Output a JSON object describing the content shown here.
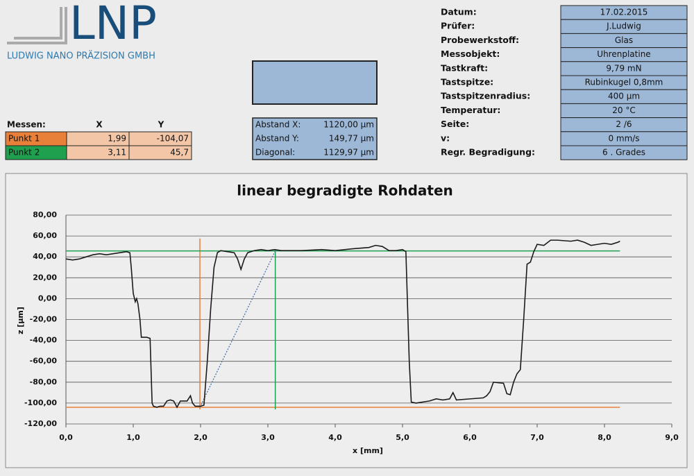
{
  "logo": {
    "name": "LNP",
    "subtitle": "LUDWIG NANO PRÄZISION GMBH"
  },
  "measure": {
    "headers": [
      "Messen:",
      "X",
      "Y"
    ],
    "rows": [
      {
        "label": "Punkt 1",
        "color": "#e8803a",
        "x": {
          "value": 1.99,
          "label": "1,99"
        },
        "y": {
          "value": -104.07,
          "label": "-104,07"
        }
      },
      {
        "label": "Punkt 2",
        "color": "#1fa04f",
        "x": {
          "value": 3.11,
          "label": "3,11"
        },
        "y": {
          "value": 45.7,
          "label": "45,7"
        }
      }
    ]
  },
  "distance": {
    "rows": [
      {
        "label": "Abstand X:",
        "value": "1120,00 µm"
      },
      {
        "label": "Abstand Y:",
        "value": "149,77 µm"
      },
      {
        "label": "Diagonal:",
        "value": "1129,97 µm"
      }
    ]
  },
  "info": {
    "rows": [
      {
        "label": "Datum:",
        "value": "17.02.2015"
      },
      {
        "label": "Prüfer:",
        "value": "J.Ludwig"
      },
      {
        "label": "Probewerkstoff:",
        "value": "Glas"
      },
      {
        "label": "Messobjekt:",
        "value": "Uhrenplatine"
      },
      {
        "label": "Tastkraft:",
        "value": "9,79 mN"
      },
      {
        "label": "Tastspitze:",
        "value": "Rubinkugel 0,8mm"
      },
      {
        "label": "Tastspitzenradius:",
        "value": "400 µm"
      },
      {
        "label": "Temperatur:",
        "value": "20 °C"
      },
      {
        "label": "Seite:",
        "value": "2 /6"
      },
      {
        "label": "v:",
        "value": "0 mm/s"
      },
      {
        "label": "Regr. Begradigung:",
        "value": "6 . Grades"
      }
    ]
  },
  "chart_data": {
    "type": "line",
    "title": "linear begradigte Rohdaten",
    "x_label": "x [mm]",
    "y_label": "z [µm]",
    "xlim": [
      0,
      9
    ],
    "xticks": [
      {
        "value": 0,
        "label": "0,0"
      },
      {
        "value": 1,
        "label": "1,0"
      },
      {
        "value": 2,
        "label": "2,0"
      },
      {
        "value": 3,
        "label": "3,0"
      },
      {
        "value": 4,
        "label": "4,0"
      },
      {
        "value": 5,
        "label": "5,0"
      },
      {
        "value": 6,
        "label": "6,0"
      },
      {
        "value": 7,
        "label": "7,0"
      },
      {
        "value": 8,
        "label": "8,0"
      },
      {
        "value": 9,
        "label": "9,0"
      }
    ],
    "ylim": [
      -120,
      80
    ],
    "yticks": [
      {
        "value": -120,
        "label": "-120,00"
      },
      {
        "value": -100,
        "label": "-100,00"
      },
      {
        "value": -80,
        "label": "-80,00"
      },
      {
        "value": -60,
        "label": "-60,00"
      },
      {
        "value": -40,
        "label": "-40,00"
      },
      {
        "value": -20,
        "label": "-20,00"
      },
      {
        "value": 0,
        "label": "0,00"
      },
      {
        "value": 20,
        "label": "20,00"
      },
      {
        "value": 40,
        "label": "40,00"
      },
      {
        "value": 60,
        "label": "60,00"
      },
      {
        "value": 80,
        "label": "80,00"
      }
    ],
    "grid": true,
    "diagonal_color": "#4a6fa5",
    "x": [
      0,
      0.1,
      0.2,
      0.3,
      0.4,
      0.5,
      0.6,
      0.7,
      0.8,
      0.9,
      0.95,
      0.97,
      1.0,
      1.03,
      1.05,
      1.07,
      1.1,
      1.12,
      1.2,
      1.25,
      1.28,
      1.3,
      1.35,
      1.4,
      1.45,
      1.5,
      1.55,
      1.6,
      1.65,
      1.7,
      1.75,
      1.8,
      1.85,
      1.88,
      1.92,
      2.0,
      2.05,
      2.1,
      2.15,
      2.2,
      2.25,
      2.3,
      2.4,
      2.5,
      2.55,
      2.6,
      2.65,
      2.7,
      2.8,
      2.9,
      3.0,
      3.1,
      3.2,
      3.5,
      3.8,
      4.0,
      4.3,
      4.5,
      4.6,
      4.7,
      4.8,
      4.9,
      5.0,
      5.05,
      5.1,
      5.13,
      5.2,
      5.3,
      5.4,
      5.5,
      5.6,
      5.7,
      5.75,
      5.8,
      6.0,
      6.2,
      6.25,
      6.3,
      6.35,
      6.5,
      6.55,
      6.6,
      6.65,
      6.7,
      6.75,
      6.8,
      6.85,
      6.9,
      6.95,
      7.0,
      7.1,
      7.2,
      7.3,
      7.5,
      7.6,
      7.7,
      7.8,
      7.9,
      8.0,
      8.1,
      8.2,
      8.23
    ],
    "series": [
      {
        "color": "#1a1a1a",
        "values": [
          38,
          37,
          38,
          40,
          42,
          43,
          42,
          43,
          44,
          45,
          44,
          30,
          5,
          -3,
          0,
          -5,
          -20,
          -37,
          -37,
          -38,
          -100,
          -103,
          -104,
          -103,
          -103,
          -98,
          -97,
          -98,
          -104,
          -98,
          -98,
          -98,
          -93,
          -100,
          -103,
          -103,
          -102,
          -60,
          -10,
          30,
          44,
          46,
          45,
          44,
          38,
          28,
          38,
          44,
          46,
          47,
          46,
          47,
          46,
          46,
          47,
          46,
          48,
          49,
          51,
          50,
          46,
          46,
          47,
          45,
          -60,
          -99,
          -100,
          -99,
          -98,
          -96,
          -97,
          -96,
          -90,
          -97,
          -96,
          -95,
          -93,
          -89,
          -80,
          -81,
          -91,
          -92,
          -80,
          -72,
          -68,
          -20,
          33,
          35,
          45,
          52,
          51,
          56,
          56,
          55,
          56,
          54,
          51,
          52,
          53,
          52,
          54,
          55
        ]
      }
    ]
  }
}
